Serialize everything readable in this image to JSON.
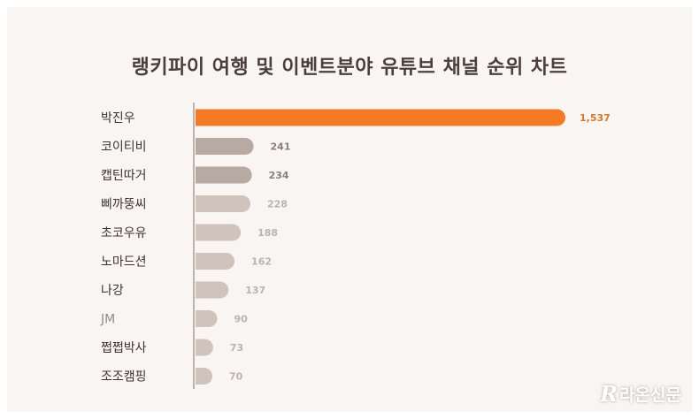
{
  "title": "랭키파이 여행 및 이벤트분야 유튜브 채널 순위 차트",
  "watermark": {
    "logo": "R",
    "text": "라온신문"
  },
  "colors": {
    "background": "#f8f5f3",
    "highlight": "#f47a24",
    "highlight_label": "#d9772c",
    "axis": "#bdb2ad",
    "name_text": "#3b3431",
    "name_text_faded": "#8f8a88",
    "value_text": "#8a807c",
    "value_text_faded": "#bbb3af"
  },
  "chart_data": {
    "type": "bar",
    "orientation": "horizontal",
    "title": "랭키파이 여행 및 이벤트분야 유튜브 채널 순위 차트",
    "categories": [
      "박진우",
      "코이티비",
      "캡틴따거",
      "삐까뚱씨",
      "초코우유",
      "노마드션",
      "나강",
      "JM",
      "쩝쩝박사",
      "조조캠핑"
    ],
    "values": [
      1537,
      241,
      234,
      228,
      188,
      162,
      137,
      90,
      73,
      70
    ],
    "value_labels": [
      "1,537",
      "241",
      "234",
      "228",
      "188",
      "162",
      "137",
      "90",
      "73",
      "70"
    ],
    "bar_colors": [
      "#f47a24",
      "#b8a9a2",
      "#b8a9a2",
      "#d0c3bc",
      "#d0c3bc",
      "#d0c3bc",
      "#d0c3bc",
      "#d0c3bc",
      "#d0c3bc",
      "#d0c3bc"
    ],
    "xlim": [
      0,
      1537
    ],
    "grid": false,
    "legend": "none"
  }
}
